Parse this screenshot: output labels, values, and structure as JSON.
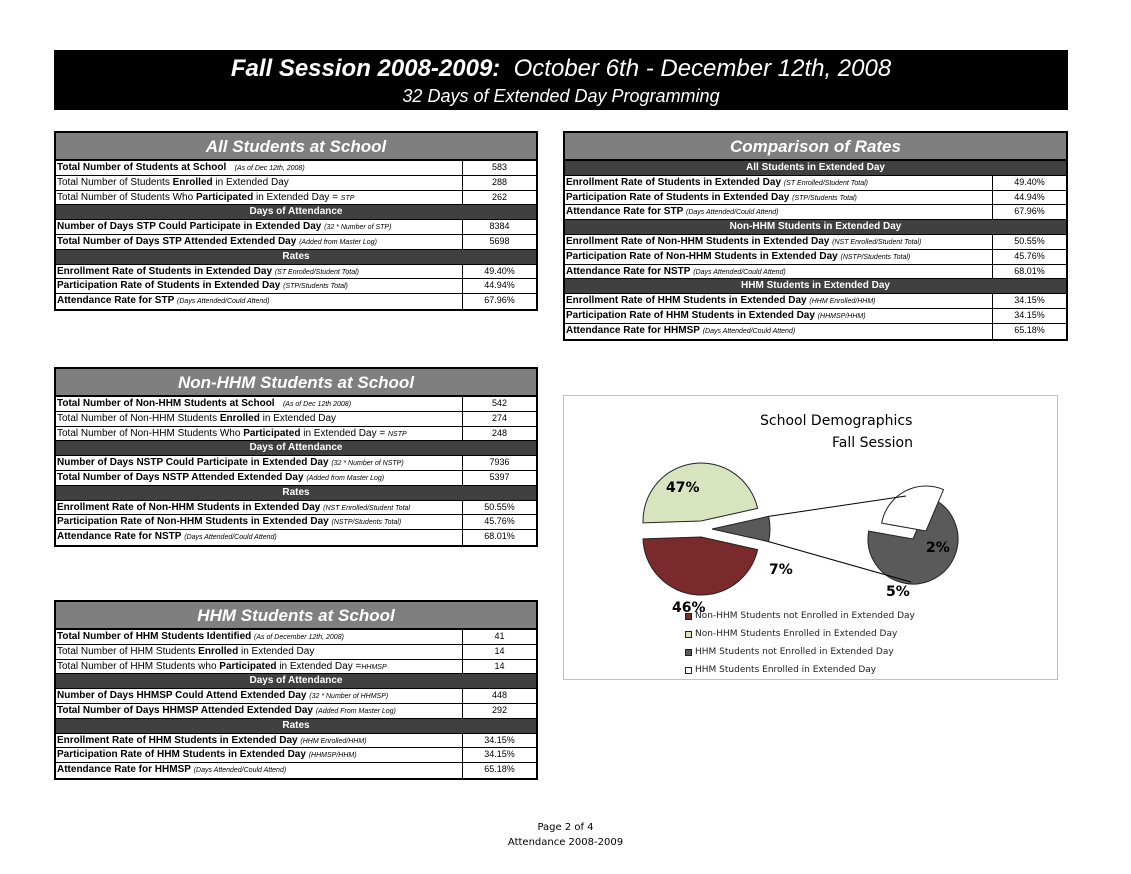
{
  "banner": {
    "title_bold": "Fall Session 2008-2009:",
    "title_dates": "October 6th - December 12th, 2008",
    "subtitle": "32 Days of Extended Day Programming"
  },
  "all_students": {
    "title": "All Students at School",
    "r1": {
      "label": "Total Number of Students at School",
      "note": "(As of Dec 12th, 2008)",
      "value": "583"
    },
    "r2": {
      "pre": "Total Number of Students ",
      "bold": "Enrolled",
      "post": " in Extended Day",
      "value": "288"
    },
    "r3": {
      "pre": "Total  Number of Students Who ",
      "bold": "Participated",
      "post": " in Extended Day = ",
      "note": "STP",
      "value": "262"
    },
    "sec_days": "Days of Attendance",
    "r4": {
      "label": "Number of Days STP Could Participate in Extended Day",
      "note": "(32 * Number of STP)",
      "value": "8384"
    },
    "r5": {
      "label": "Total Number of Days STP Attended Extended Day",
      "note": "(Added from Master Log)",
      "value": "5698"
    },
    "sec_rates": "Rates",
    "r6": {
      "label": "Enrollment Rate of Students in Extended Day",
      "note": "(ST Enrolled/Student Total)",
      "value": "49.40%"
    },
    "r7": {
      "label": "Participation Rate of Students in Extended Day",
      "note": "(STP/Students Total)",
      "value": "44.94%"
    },
    "r8": {
      "label": "Attendance Rate for STP",
      "note": "(Days Attended/Could Attend)",
      "value": "67.96%"
    }
  },
  "comparison": {
    "title": "Comparison of Rates",
    "sec_all": "All Students in Extended Day",
    "r1": {
      "label": "Enrollment Rate of Students in Extended Day",
      "note": "(ST Enrolled/Student Total)",
      "value": "49.40%"
    },
    "r2": {
      "label": "Participation Rate of Students in Extended Day",
      "note": "(STP/Students Total)",
      "value": "44.94%"
    },
    "r3": {
      "label": "Attendance Rate for STP",
      "note": "(Days Attended/Could Attend)",
      "value": "67.96%"
    },
    "sec_non": "Non-HHM Students in Extended Day",
    "r4": {
      "label": "Enrollment Rate of Non-HHM Students in Extended Day",
      "note": "(NST Enrolled/Student Total)",
      "value": "50.55%"
    },
    "r5": {
      "label": "Participation Rate of Non-HHM Students in Extended Day",
      "note": "(NSTP/Students Total)",
      "value": "45.76%"
    },
    "r6": {
      "label": "Attendance Rate for NSTP",
      "note": "(Days Attended/Could Attend)",
      "value": "68.01%"
    },
    "sec_hhm": "HHM Students in Extended Day",
    "r7": {
      "label": "Enrollment Rate of HHM Students in Extended Day",
      "note": "(HHM Enrolled/HHM)",
      "value": "34.15%"
    },
    "r8": {
      "label": "Participation Rate of HHM Students in Extended Day",
      "note": "(HHMSP/HHM)",
      "value": "34.15%"
    },
    "r9": {
      "label": "Attendance Rate for HHMSP",
      "note": "(Days Attended/Could Attend)",
      "value": "65.18%"
    }
  },
  "non_hhm": {
    "title": "Non-HHM Students at School",
    "r1": {
      "label": "Total Number of Non-HHM Students at School",
      "note": "(As of Dec 12th 2008)",
      "value": "542"
    },
    "r2": {
      "pre": "Total Number of Non-HHM Students ",
      "bold": "Enrolled",
      "post": " in Extended Day",
      "value": "274"
    },
    "r3": {
      "pre": "Total  Number of Non-HHM Students Who ",
      "bold": "Participated",
      "post": " in Extended Day = ",
      "note": "NSTP",
      "value": "248"
    },
    "sec_days": "Days of Attendance",
    "r4": {
      "label": "Number of Days NSTP Could Participate in Extended Day",
      "note": "(32 * Number of NSTP)",
      "value": "7936"
    },
    "r5": {
      "label": "Total Number of Days NSTP Attended Extended Day",
      "note": "(Added from Master Log)",
      "value": "5397"
    },
    "sec_rates": "Rates",
    "r6": {
      "label": "Enrollment Rate of Non-HHM Students in Extended Day",
      "note": "(NST Enrolled/Student Total",
      "value": "50.55%"
    },
    "r7": {
      "label": "Participation Rate of Non-HHM Students in Extended Day",
      "note": "(NSTP/Students Total)",
      "value": "45.76%"
    },
    "r8": {
      "label": "Attendance Rate for NSTP",
      "note": "(Days Attended/Could Attend)",
      "value": "68.01%"
    }
  },
  "hhm": {
    "title": "HHM Students at School",
    "r1": {
      "label": "Total Number of HHM Students Identified",
      "note": "(As of December 12th, 2008)",
      "value": "41"
    },
    "r2": {
      "pre": "Total Number of HHM Students ",
      "bold": "Enrolled",
      "post": " in Extended Day",
      "value": "14"
    },
    "r3": {
      "pre": "Total Number of HHM Students who ",
      "bold": "Participated",
      "post": " in Extended Day =",
      "note": "HHMSP",
      "value": "14"
    },
    "sec_days": "Days of Attendance",
    "r4": {
      "label": "Number of Days HHMSP Could Attend Extended Day",
      "note": "(32 * Number of HHMSP)",
      "value": "448"
    },
    "r5": {
      "label": "Total Number of Days HHMSP Attended Extended Day",
      "note": "(Added From Master Log)",
      "value": "292"
    },
    "sec_rates": "Rates",
    "r6": {
      "label": "Enrollment Rate of HHM Students in Extended Day",
      "note": "(HHM Enrolled/HHM)",
      "value": "34.15%"
    },
    "r7": {
      "label": "Participation Rate of HHM Students in Extended Day",
      "note": "(HHMSP/HHM)",
      "value": "34.15%"
    },
    "r8": {
      "label": "Attendance Rate for HHMSP",
      "note": "(Days Attended/Could Attend)",
      "value": "65.18%"
    }
  },
  "chart_data": {
    "type": "pie",
    "title_line1": "School Demographics",
    "title_line2": "Fall Session",
    "categories": [
      "Non-HHM Students not Enrolled in Extended Day",
      "Non-HHM Students Enrolled in Extended Day",
      "HHM Students not Enrolled in Extended Day",
      "HHM Students Enrolled in Extended Day"
    ],
    "values": [
      46,
      47,
      5,
      2
    ],
    "main_pie_labels": [
      "47%",
      "7%",
      "46%"
    ],
    "sub_pie_labels": [
      "2%",
      "5%"
    ],
    "colors": [
      "#7a2a2a",
      "#d7e4bd",
      "#5a5a5a",
      "#ffffff"
    ]
  },
  "footer": {
    "page": "Page 2 of 4",
    "doc": "Attendance 2008-2009"
  }
}
